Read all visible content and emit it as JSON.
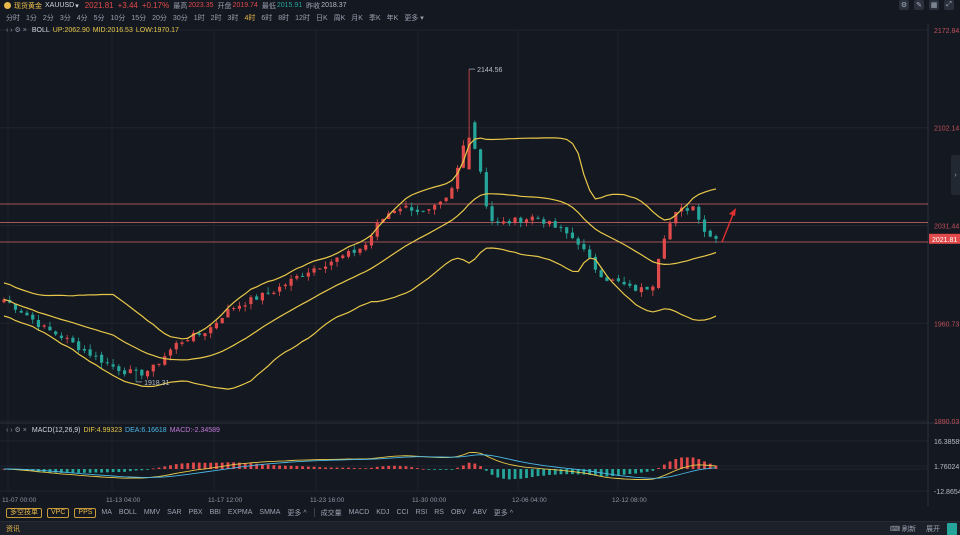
{
  "header": {
    "name": "现货黄金",
    "code": "XAUUSD",
    "caret": "▾",
    "price": "2021.81",
    "change": "+3.44",
    "change_pct": "+0.17%",
    "stats": [
      {
        "label": "最高",
        "value": "2023.35",
        "color": "red"
      },
      {
        "label": "开盘",
        "value": "2019.74",
        "color": "red"
      },
      {
        "label": "最低",
        "value": "2015.91",
        "color": "green"
      },
      {
        "label": "昨收",
        "value": "2018.37",
        "color": "gray"
      }
    ]
  },
  "toolbar_icons": [
    "chart-settings-icon",
    "draw-tool-icon",
    "calendar-icon",
    "fullscreen-icon"
  ],
  "intervals": [
    "分时",
    "1分",
    "2分",
    "3分",
    "4分",
    "5分",
    "10分",
    "15分",
    "20分",
    "30分",
    "1时",
    "2时",
    "3时",
    "4时",
    "6时",
    "8时",
    "12时",
    "日K",
    "周K",
    "月K",
    "季K",
    "年K",
    "更多 ▾"
  ],
  "active_interval": "4时",
  "boll": {
    "title": "BOLL",
    "up": "UP:2062.90",
    "mid": "MID:2016.53",
    "low": "LOW:1970.17"
  },
  "macd": {
    "title": "MACD(12,26,9)",
    "dif": "DIF:4.99323",
    "dea": "DEA:6.16618",
    "macd": "MACD:-2.34589"
  },
  "price_axis": {
    "labels": [
      "2172.84",
      "2102.14",
      "2031.44",
      "1960.73",
      "1890.03"
    ],
    "current": "2021.81",
    "current_color": "#e04a4a"
  },
  "macd_axis": {
    "labels": [
      "16.38589",
      "1.76024",
      "-12.86540"
    ]
  },
  "time_axis": {
    "labels": [
      "11-07 00:00",
      "11-13 04:00",
      "11-17 12:00",
      "11-23 16:00",
      "11-30 00:00",
      "12-06 04:00",
      "12-12 08:00"
    ]
  },
  "annotations": {
    "high": "2144.56",
    "low": "1918.31"
  },
  "right_tab_label": "›",
  "indicator_buttons": [
    "多空技单",
    "VPC",
    "PPS"
  ],
  "main_indicators": [
    "MA",
    "BOLL",
    "MMV",
    "SAR",
    "PBX",
    "BBI",
    "EXPMA",
    "SMMA",
    "更多 ^"
  ],
  "sub_indicators": [
    "成交量",
    "MACD",
    "KDJ",
    "CCI",
    "RSI",
    "RS",
    "OBV",
    "ABV",
    "更多 ^"
  ],
  "footer": {
    "news": "资讯",
    "right_items": [
      "⌨ 刷新",
      "展开"
    ]
  },
  "colors": {
    "up": "#e04a4a",
    "down": "#26a69a",
    "boll": "#e8c84a",
    "dea": "#4ab8e8",
    "hline": "#d06a6a"
  }
}
